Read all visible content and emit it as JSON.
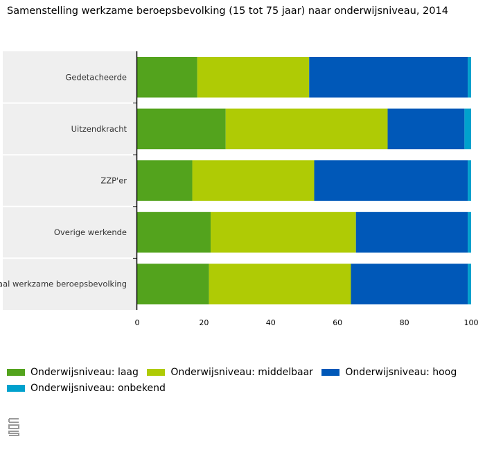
{
  "chart_data": {
    "type": "bar",
    "orientation": "horizontal",
    "stacked": true,
    "title": "Samenstelling werkzame beroepsbevolking (15 tot 75 jaar) naar onderwijsniveau, 2014",
    "xlabel": "",
    "ylabel": "",
    "xlim": [
      0,
      100
    ],
    "xticks": [
      0,
      20,
      40,
      60,
      80,
      100
    ],
    "grid": false,
    "legend_position": "bottom",
    "categories": [
      "Gedetacheerde",
      "Uitzendkracht",
      "ZZP'er",
      "Overige werkende",
      "Totaal werkzame beroepsbevolking"
    ],
    "series": [
      {
        "name": "Onderwijsniveau: laag",
        "color": "#53a31d",
        "values": [
          18,
          26.5,
          16.5,
          22,
          21.5
        ]
      },
      {
        "name": "Onderwijsniveau: middelbaar",
        "color": "#afcb05",
        "values": [
          33.5,
          48.5,
          36.5,
          43.5,
          42.5
        ]
      },
      {
        "name": "Onderwijsniveau: hoog",
        "color": "#0058b8",
        "values": [
          47.5,
          23,
          46,
          33.5,
          35
        ]
      },
      {
        "name": "Onderwijsniveau: onbekend",
        "color": "#00a1cd",
        "values": [
          1,
          2,
          1,
          1,
          1
        ]
      }
    ]
  },
  "colors": {
    "axis": "#000000",
    "category_band": "#efefef",
    "divider": "#ffffff"
  },
  "logo_icon": "cbs-logo-icon"
}
